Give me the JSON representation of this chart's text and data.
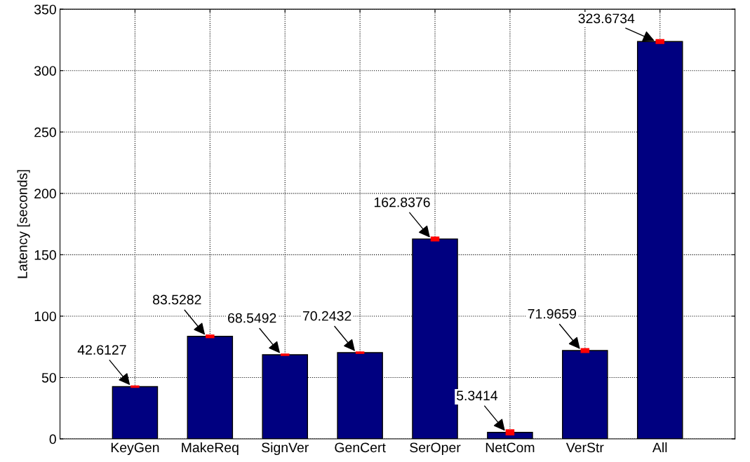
{
  "chart_data": {
    "type": "bar",
    "ylabel": "Latency [seconds]",
    "categories": [
      "KeyGen",
      "MakeReq",
      "SignVer",
      "GenCert",
      "SerOper",
      "NetCom",
      "VerStr",
      "All"
    ],
    "values": [
      42.6127,
      83.5282,
      68.5492,
      70.2432,
      162.8376,
      5.3414,
      71.9659,
      323.6734
    ],
    "errors": [
      1,
      1.5,
      1,
      1,
      2,
      2.5,
      2,
      2
    ],
    "color": "#000080",
    "annotations": [
      {
        "text": "42.6127",
        "x": "KeyGen",
        "y": 42.6127
      },
      {
        "text": "83.5282",
        "x": "MakeReq",
        "y": 83.5282
      },
      {
        "text": "68.5492",
        "x": "SignVer",
        "y": 68.5492
      },
      {
        "text": "70.2432",
        "x": "GenCert",
        "y": 70.2432
      },
      {
        "text": "162.8376",
        "x": "SerOper",
        "y": 162.8376
      },
      {
        "text": "5.3414",
        "x": "NetCom",
        "y": 5.3414
      },
      {
        "text": "71.9659",
        "x": "VerStr",
        "y": 71.9659
      },
      {
        "text": "323.6734",
        "x": "All",
        "y": 323.6734
      }
    ],
    "ylim": [
      0,
      350
    ],
    "yticks": [
      0,
      50,
      100,
      150,
      200,
      250,
      300,
      350
    ],
    "grid": true
  }
}
